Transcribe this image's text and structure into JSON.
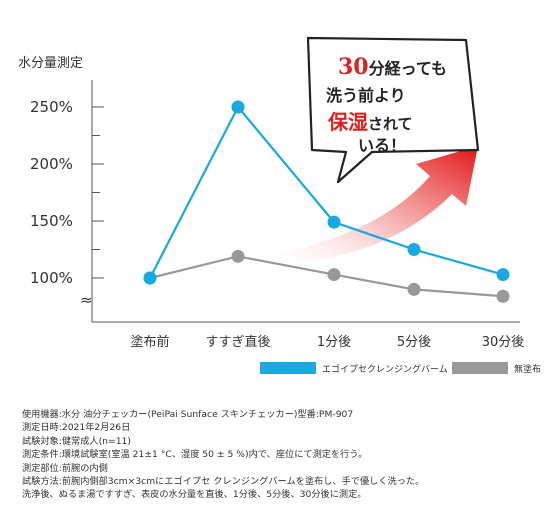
{
  "chart_data": {
    "type": "line",
    "ylabel": "水分量測定",
    "yticks": [
      {
        "value": 100,
        "label": "100%"
      },
      {
        "value": 150,
        "label": "150%"
      },
      {
        "value": 200,
        "label": "200%"
      },
      {
        "value": 250,
        "label": "250%"
      }
    ],
    "ylim": [
      80,
      265
    ],
    "axis_break": "≈",
    "categories": [
      "塗布前",
      "すすぎ直後",
      "1分後",
      "5分後",
      "30分後"
    ],
    "highlight_categories": [
      0,
      4
    ],
    "series": [
      {
        "name": "エゴイプセクレンジングバーム",
        "color": "#18a9e0",
        "values": [
          100,
          250,
          149,
          125,
          103
        ]
      },
      {
        "name": "無塗布",
        "color": "#999999",
        "values": [
          100,
          119,
          103,
          90,
          84
        ]
      }
    ],
    "legend_position": "bottom-right"
  },
  "callout": {
    "num": "30",
    "line1": "分経っても",
    "line2": "洗う前より",
    "line3_red": "保湿",
    "line3": "されて",
    "line4": "いる！"
  },
  "colors": {
    "highlight": "#e02020",
    "arrow": "#e21515"
  },
  "notes": [
    "使用機器:水分 油分チェッカー(PeiPai Sunface スキンチェッカー)型番:PM-907",
    "測定日時:2021年2月26日",
    "試験対象:健常成人(n=11)",
    "測定条件:環境試験室(室温 21±1 °C、湿度 50 ± 5 %)内で、座位にて測定を行う。",
    "測定部位:前腕の内側",
    "試験方法:前腕内側部3cm×3cmにエゴイプセ クレンジングバームを塗布し、手で優しく洗った。",
    "洗浄後、ぬるま湯ですすぎ、表皮の水分量を直後、1分後、5分後、30分後に測定。"
  ]
}
